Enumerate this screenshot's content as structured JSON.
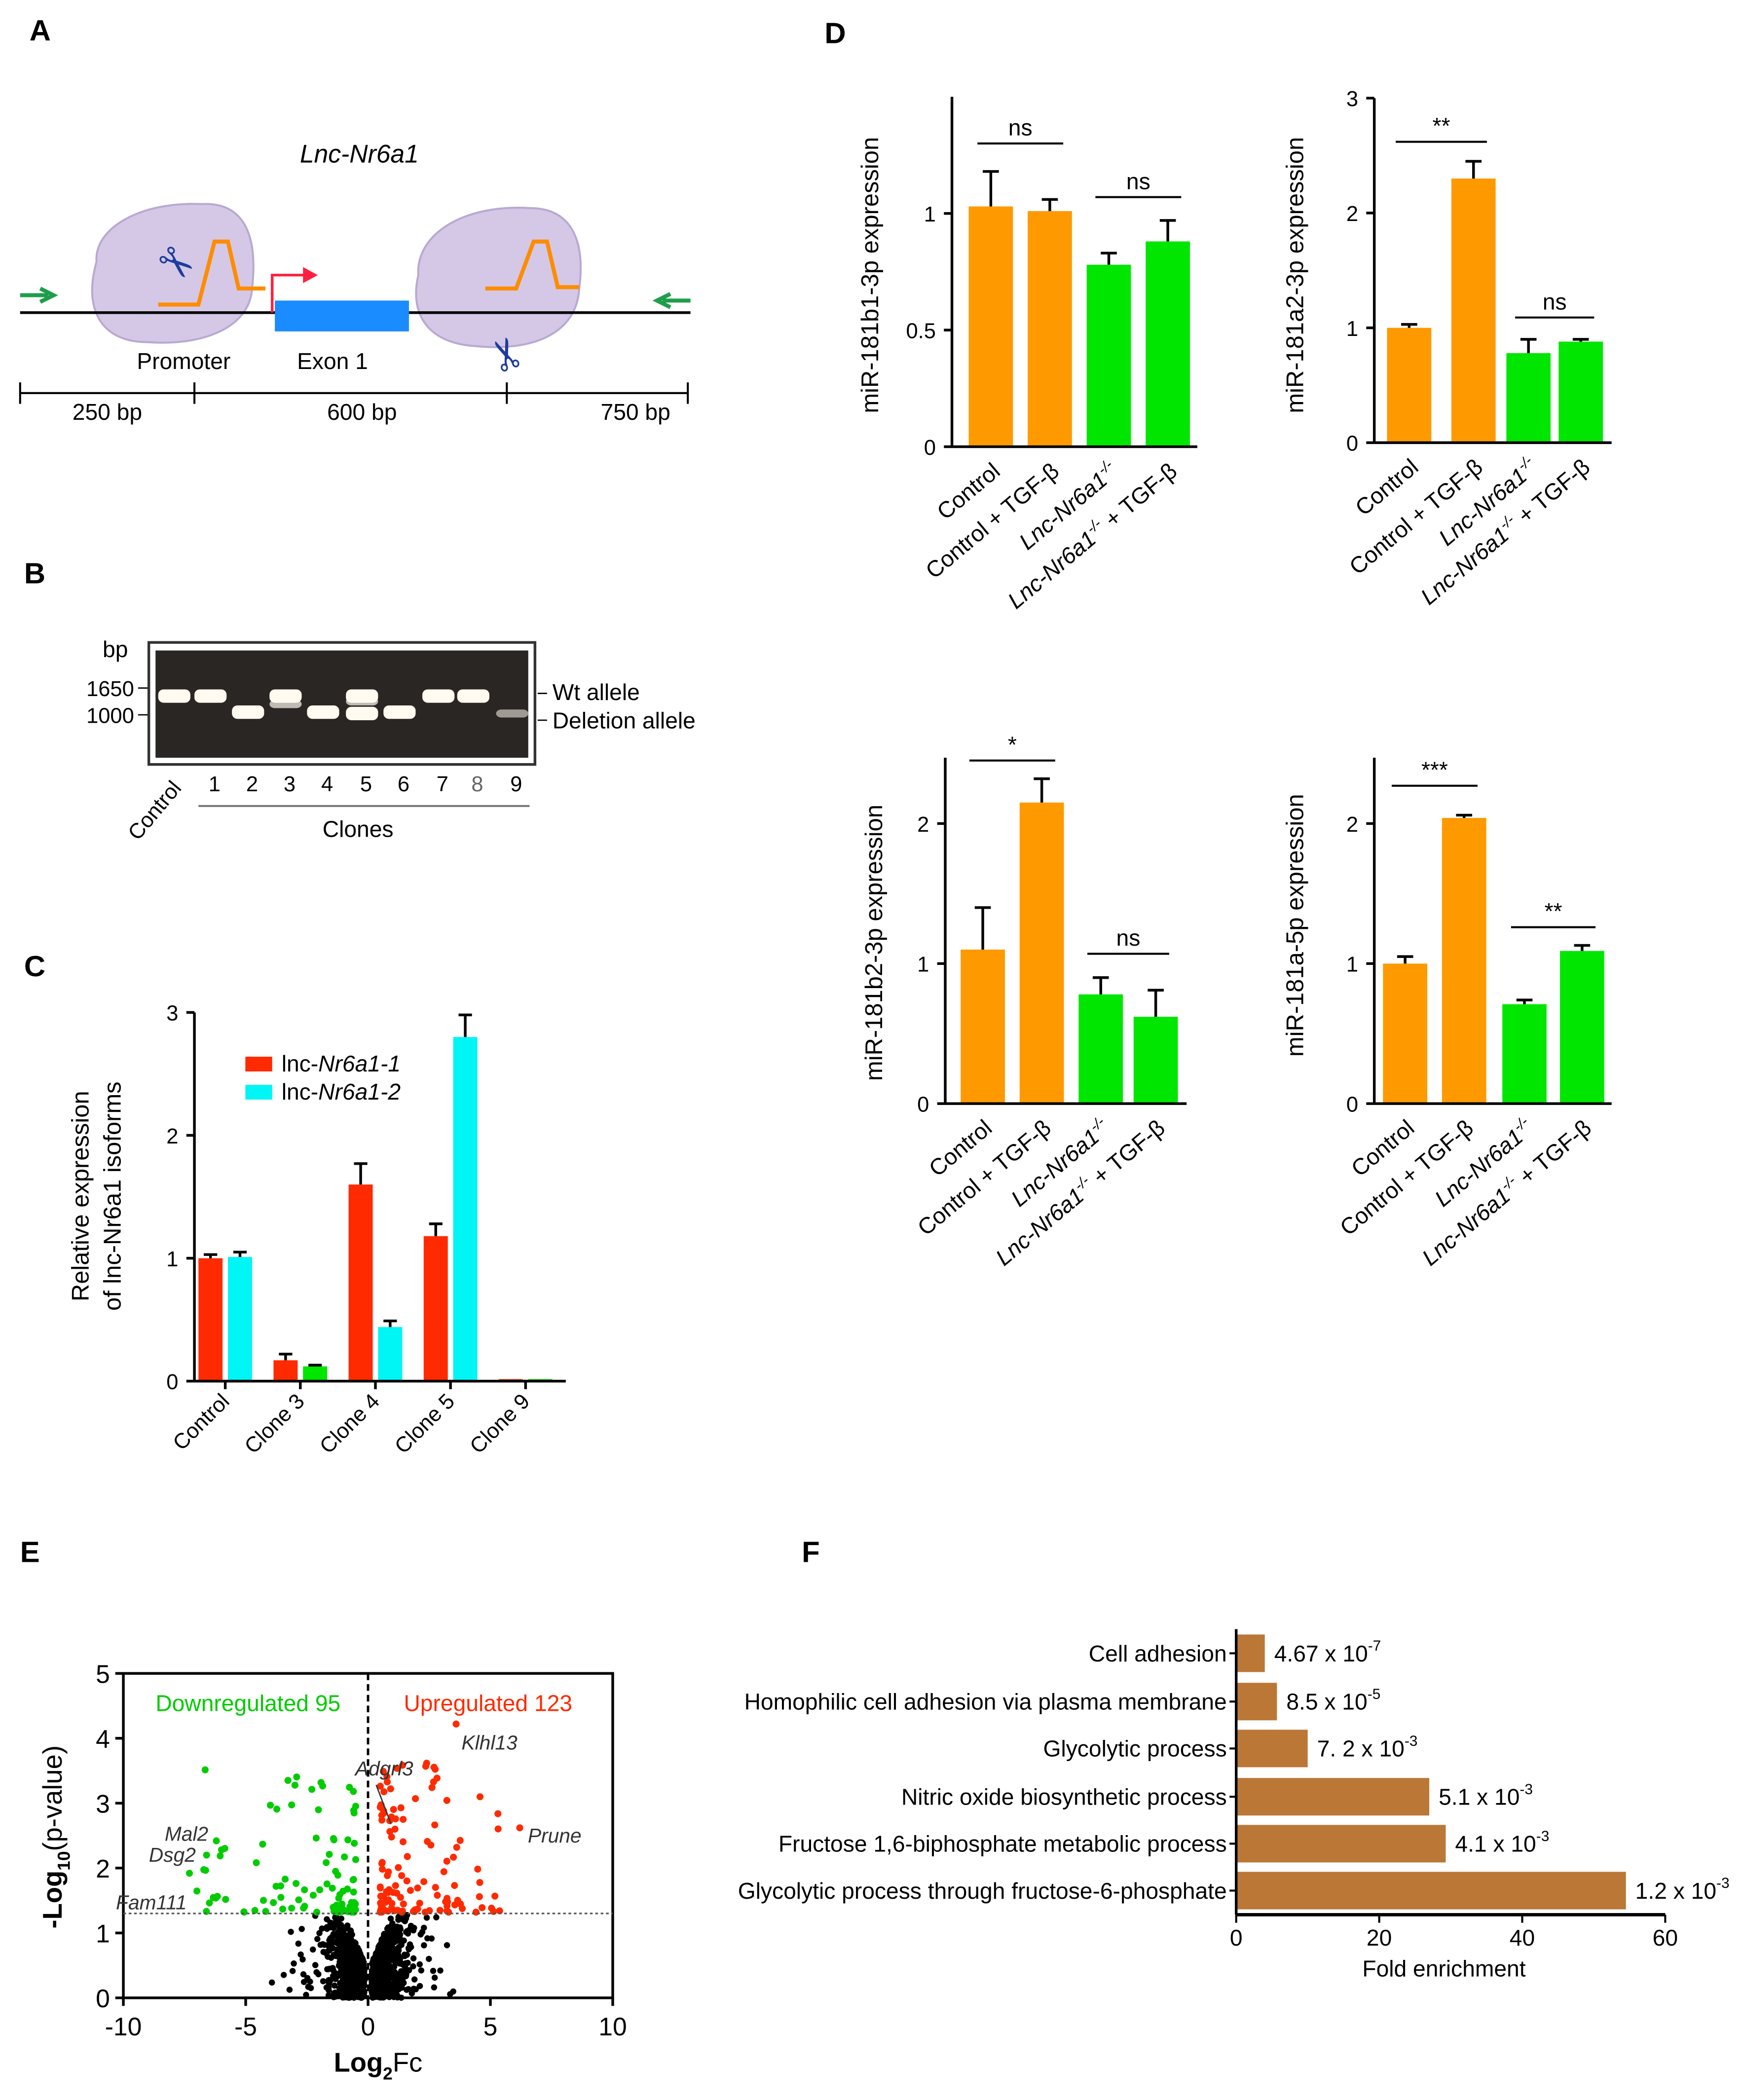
{
  "panels": {
    "A": "A",
    "B": "B",
    "C": "C",
    "D": "D",
    "E": "E",
    "F": "F"
  },
  "panel_a": {
    "title": "Lnc-Nr6a1",
    "promoter_label": "Promoter",
    "exon_label": "Exon 1",
    "segments": [
      "250 bp",
      "600 bp",
      "750 bp"
    ],
    "colors": {
      "exon": "#1a8cff",
      "guide": "#ff8c00",
      "blob": "#d4c8e6",
      "primer": "#1e9e4a",
      "tss": "#ff2040"
    }
  },
  "panel_b": {
    "unit": "bp",
    "markers": [
      "1650",
      "1000"
    ],
    "lanes": [
      "Control",
      "1",
      "2",
      "3",
      "4",
      "5",
      "6",
      "7",
      "8",
      "9"
    ],
    "group_label": "Clones",
    "band_labels": [
      "Wt allele",
      "Deletion allele"
    ]
  },
  "chart_data": [
    {
      "id": "C",
      "type": "bar",
      "ylabel": [
        "Relative expression",
        "of lnc-Nr6a1 isoforms"
      ],
      "categories": [
        "Control",
        "Clone 3",
        "Clone 4",
        "Clone 5",
        "Clone 9"
      ],
      "ylim": [
        0,
        3
      ],
      "yticks": [
        "0",
        "1",
        "2",
        "3"
      ],
      "legend_placement": "top-left",
      "series": [
        {
          "name_prefix": "lnc-",
          "name_italic": "Nr6a1-1",
          "color": "#ff2a00",
          "values": [
            1.0,
            0.17,
            1.6,
            1.18,
            0.01
          ],
          "errors": [
            0.03,
            0.05,
            0.17,
            0.1,
            0.0
          ]
        },
        {
          "name_prefix": "lnc-",
          "name_italic": "Nr6a1-2",
          "color": "#00f5f5",
          "alt_color": "#00e600",
          "alt_color_categories": [
            "Clone 3",
            "Clone 9"
          ],
          "values": [
            1.01,
            0.12,
            0.44,
            2.8,
            0.01
          ],
          "errors": [
            0.04,
            0.01,
            0.05,
            0.18,
            0.0
          ]
        }
      ]
    },
    {
      "id": "D1",
      "type": "bar",
      "ylabel": "miR-181b1-3p expression",
      "ylim": [
        0,
        1.5
      ],
      "yticks": [
        "0",
        "0.5",
        "1"
      ],
      "categories": [
        "Control",
        "Control + TGF-β",
        "Lnc-Nr6a1-/-",
        "Lnc-Nr6a1-/- + TGF-β"
      ],
      "values": [
        1.03,
        1.01,
        0.78,
        0.88
      ],
      "errors": [
        0.15,
        0.05,
        0.05,
        0.09
      ],
      "colors": [
        "#ff9900",
        "#ff9900",
        "#00e600",
        "#00e600"
      ],
      "significance": [
        {
          "pair": [
            0,
            1
          ],
          "label": "ns",
          "level": 1.3
        },
        {
          "pair": [
            2,
            3
          ],
          "label": "ns",
          "level": 1.07
        }
      ]
    },
    {
      "id": "D2",
      "type": "bar",
      "ylabel": "miR-181a2-3p expression",
      "ylim": [
        0,
        3
      ],
      "yticks": [
        "0",
        "1",
        "2",
        "3"
      ],
      "categories": [
        "Control",
        "Control + TGF-β",
        "Lnc-Nr6a1-/-",
        "Lnc-Nr6a1-/- + TGF-β"
      ],
      "values": [
        1.0,
        2.3,
        0.78,
        0.88
      ],
      "errors": [
        0.03,
        0.15,
        0.12,
        0.02
      ],
      "colors": [
        "#ff9900",
        "#ff9900",
        "#00e600",
        "#00e600"
      ],
      "significance": [
        {
          "pair": [
            0,
            1
          ],
          "label": "**",
          "level": 2.62
        },
        {
          "pair": [
            2,
            3
          ],
          "label": "ns",
          "level": 1.09
        }
      ]
    },
    {
      "id": "D3",
      "type": "bar",
      "ylabel": "miR-181b2-3p expression",
      "ylim": [
        0,
        2.47
      ],
      "yticks": [
        "0",
        "1",
        "2"
      ],
      "categories": [
        "Control",
        "Control + TGF-β",
        "Lnc-Nr6a1-/-",
        "Lnc-Nr6a1-/- + TGF-β"
      ],
      "values": [
        1.1,
        2.15,
        0.78,
        0.62
      ],
      "errors": [
        0.3,
        0.17,
        0.12,
        0.19
      ],
      "colors": [
        "#ff9900",
        "#ff9900",
        "#00e600",
        "#00e600"
      ],
      "significance": [
        {
          "pair": [
            0,
            1
          ],
          "label": "*",
          "level": 2.45
        },
        {
          "pair": [
            2,
            3
          ],
          "label": "ns",
          "level": 1.07
        }
      ]
    },
    {
      "id": "D4",
      "type": "bar",
      "ylabel": "miR-181a-5p expression",
      "ylim": [
        0,
        2.47
      ],
      "yticks": [
        "0",
        "1",
        "2"
      ],
      "categories": [
        "Control",
        "Control + TGF-β",
        "Lnc-Nr6a1-/-",
        "Lnc-Nr6a1-/- + TGF-β"
      ],
      "values": [
        1.0,
        2.04,
        0.71,
        1.09
      ],
      "errors": [
        0.05,
        0.02,
        0.03,
        0.04
      ],
      "colors": [
        "#ff9900",
        "#ff9900",
        "#00e600",
        "#00e600"
      ],
      "significance": [
        {
          "pair": [
            0,
            1
          ],
          "label": "***",
          "level": 2.27
        },
        {
          "pair": [
            2,
            3
          ],
          "label": "**",
          "level": 1.26
        }
      ]
    },
    {
      "id": "E",
      "type": "scatter",
      "xlabel_base": "Log",
      "xlabel_sub": "2",
      "xlabel_tail": "Fc",
      "ylabel_base": "-Log",
      "ylabel_sub": "10",
      "ylabel_tail": "(p-value)",
      "xlim": [
        -10,
        10
      ],
      "ylim": [
        0,
        5
      ],
      "xticks": [
        "-10",
        "-5",
        "0",
        "5",
        "10"
      ],
      "yticks": [
        "0",
        "1",
        "2",
        "3",
        "4",
        "5"
      ],
      "threshold": 1.3,
      "down_label": "Downregulated 95",
      "up_label": "Upregulated 123",
      "down_count": 95,
      "up_count": 123,
      "colors": {
        "down": "#00cc00",
        "up": "#ff2a00",
        "ns": "#000000"
      },
      "labeled_points": [
        {
          "gene": "Klhl13",
          "x": 3.6,
          "y": 4.22,
          "group": "up"
        },
        {
          "gene": "Prune",
          "x": 6.2,
          "y": 2.62,
          "group": "up"
        },
        {
          "gene": "Adgrl3",
          "x": 1.1,
          "y": 2.6,
          "group": "up"
        },
        {
          "gene": "Mal2",
          "x": -6.2,
          "y": 2.42,
          "group": "down"
        },
        {
          "gene": "Dsg2",
          "x": -6.6,
          "y": 2.2,
          "group": "down"
        },
        {
          "gene": "Fam111",
          "x": -7.3,
          "y": 1.92,
          "group": "down"
        }
      ]
    },
    {
      "id": "F",
      "type": "bar",
      "orientation": "horizontal",
      "xlabel": "Fold enrichment",
      "xlim": [
        0,
        60
      ],
      "xticks": [
        "0",
        "20",
        "40",
        "60"
      ],
      "color": "#bb7736",
      "categories": [
        "Cell adhesion",
        "Homophilic cell adhesion via plasma membrane",
        "Glycolytic process",
        "Nitric oxide biosynthetic process",
        "Fructose 1,6-biphosphate metabolic process",
        "Glycolytic process through fructose-6-phosphate"
      ],
      "values": [
        4.0,
        5.7,
        10.0,
        27.0,
        29.3,
        54.5
      ],
      "pvalues": [
        {
          "base": "4.67 x 10",
          "exp": "-7"
        },
        {
          "base": "8.5 x 10",
          "exp": "-5"
        },
        {
          "base": "7. 2 x 10",
          "exp": "-3"
        },
        {
          "base": "5.1 x 10",
          "exp": "-3"
        },
        {
          "base": "4.1 x 10",
          "exp": "-3"
        },
        {
          "base": "1.2 x 10",
          "exp": "-3"
        }
      ]
    }
  ]
}
